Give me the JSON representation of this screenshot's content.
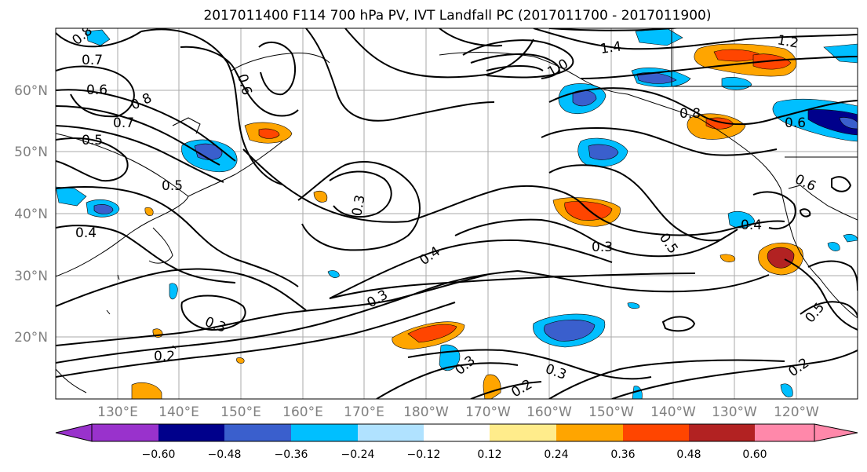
{
  "title": "2017011400 F114 700 hPa PV, IVT Landfall PC (2017011700 - 2017011900)",
  "lat_labels": [
    "60°N",
    "50°N",
    "40°N",
    "30°N",
    "20°N"
  ],
  "lon_labels": [
    "130°E",
    "140°E",
    "150°E",
    "160°E",
    "170°E",
    "180°W",
    "170°W",
    "160°W",
    "150°W",
    "140°W",
    "130°W",
    "120°W"
  ],
  "contour_labels": [
    "0.8",
    "0.7",
    "0.6",
    "0.5",
    "0.8",
    "0.7",
    "0.6",
    "0.5",
    "0.4",
    "1.4",
    "1.2",
    "1.0",
    "0.8",
    "0.6",
    "0.6",
    "0.3",
    "0.4",
    "0.3",
    "0.3",
    "0.5",
    "0.4",
    "0.3",
    "0.2",
    "0.3",
    "0.3",
    "0.2",
    "0.5",
    "0.2"
  ],
  "colorbar": {
    "ticks": [
      "−0.60",
      "−0.48",
      "−0.36",
      "−0.24",
      "−0.12",
      "0.12",
      "0.24",
      "0.36",
      "0.48",
      "0.60"
    ],
    "colors": [
      "#9932CC",
      "#00008B",
      "#3A5FCD",
      "#00BFFF",
      "#B0E2FF",
      "#FFFFFF",
      "#FFEC8B",
      "#FFA500",
      "#FF4500",
      "#B22222",
      "#FF88AA"
    ]
  }
}
